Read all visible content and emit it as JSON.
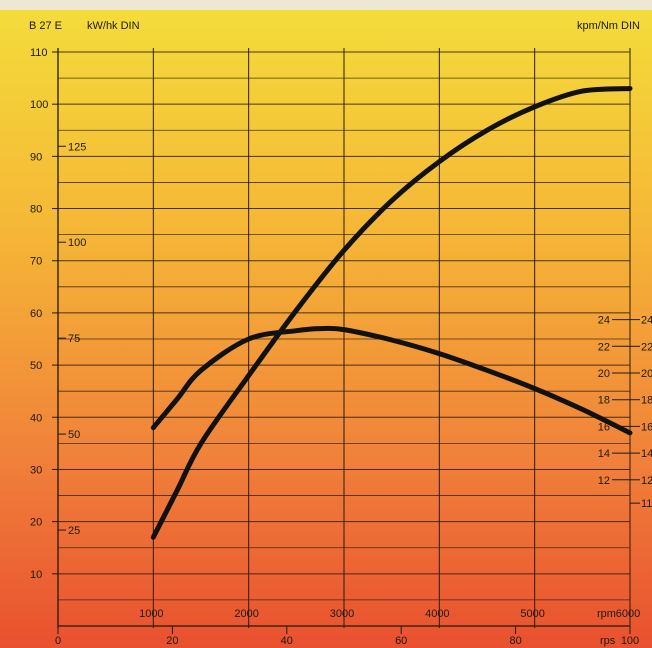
{
  "header": {
    "model": "B 27 E",
    "left_unit": "kW/hk DIN",
    "right_unit": "kpm/Nm DIN"
  },
  "chart_data": {
    "type": "line",
    "y_kw_ticks": [
      10,
      20,
      30,
      40,
      50,
      60,
      70,
      80,
      90,
      100,
      110
    ],
    "hk_ticks": [
      25,
      50,
      75,
      100,
      125
    ],
    "right_inner_ticks": [
      12,
      14,
      16,
      18,
      20,
      22,
      24
    ],
    "right_outer_ticks": [
      11,
      12,
      14,
      16,
      18,
      20,
      22,
      24
    ],
    "rpm_ticks": [
      1000,
      2000,
      3000,
      4000,
      5000,
      6000
    ],
    "rpm_unit": "rpm",
    "rps_ticks": [
      0,
      20,
      40,
      60,
      80,
      100
    ],
    "rps_unit": "rps",
    "xlim_rpm": [
      0,
      6000
    ],
    "ylim_kw": [
      0,
      110
    ],
    "grid": true,
    "series": [
      {
        "x_rpm": [
          1000,
          1250,
          1500,
          2000,
          2500,
          3000,
          3500,
          4000,
          4500,
          5000,
          5500,
          6000
        ],
        "y_kw": [
          17,
          26,
          35,
          48,
          60.5,
          72,
          81.5,
          89,
          95,
          99.5,
          102.5,
          103
        ]
      },
      {
        "x_rpm": [
          1000,
          1250,
          1500,
          2000,
          2500,
          2750,
          3000,
          3500,
          4000,
          4500,
          5000,
          5500,
          6000
        ],
        "y_kw": [
          38,
          43.5,
          49,
          55,
          56.6,
          57,
          56.8,
          54.8,
          52.2,
          49,
          45.5,
          41.5,
          37
        ]
      }
    ]
  }
}
